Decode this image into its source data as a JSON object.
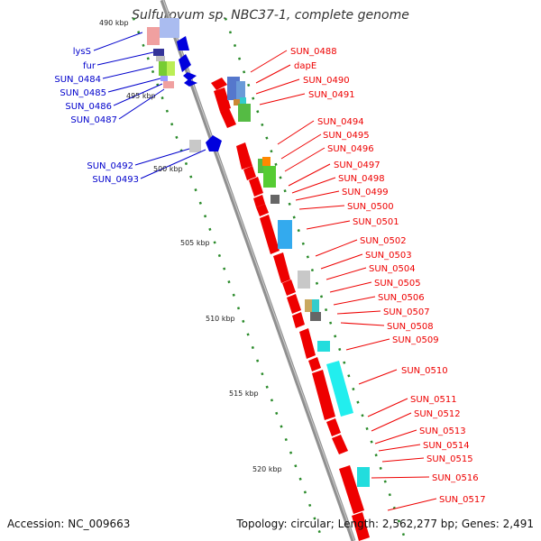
{
  "title": "Sulfurovum sp. NBC37-1, complete genome",
  "accession": "Accession: NC_009663",
  "topology": "Topology: circular; Length: 2,562,277 bp; Genes: 2,491",
  "colors": {
    "plus_strand_label": "#e00000",
    "minus_strand_label": "#0000cc",
    "backbone": "#8c8c8c",
    "tick_dots": "#2a8a2a"
  },
  "kbp_ticks": [
    "490 kbp",
    "495 kbp",
    "500 kbp",
    "505 kbp",
    "510 kbp",
    "515 kbp",
    "520 kbp"
  ],
  "left_labels": [
    "lysS",
    "fur",
    "SUN_0484",
    "SUN_0485",
    "SUN_0486",
    "SUN_0487",
    "SUN_0492",
    "SUN_0493"
  ],
  "right_labels": [
    "SUN_0488",
    "dapE",
    "SUN_0490",
    "SUN_0491",
    "SUN_0494",
    "SUN_0495",
    "SUN_0496",
    "SUN_0497",
    "SUN_0498",
    "SUN_0499",
    "SUN_0500",
    "SUN_0501",
    "SUN_0502",
    "SUN_0503",
    "SUN_0504",
    "SUN_0505",
    "SUN_0506",
    "SUN_0507",
    "SUN_0508",
    "SUN_0509",
    "SUN_0510",
    "SUN_0511",
    "SUN_0512",
    "SUN_0513",
    "SUN_0514",
    "SUN_0515",
    "SUN_0516",
    "SUN_0517"
  ]
}
